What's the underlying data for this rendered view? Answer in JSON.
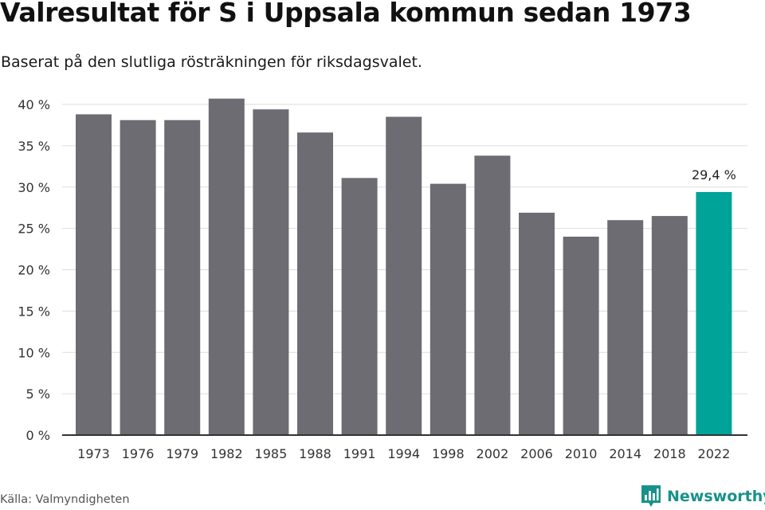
{
  "title": "Valresultat för S i Uppsala kommun sedan 1973",
  "subtitle": "Baserat på den slutliga rösträkningen för riksdagsvalet.",
  "source": "Källa: Valmyndigheten",
  "brand": "Newsworthy",
  "colors": {
    "bar": "#6d6c72",
    "highlight": "#00a398",
    "grid": "#dddddd",
    "axis": "#333333",
    "brand": "#17928a"
  },
  "chart_data": {
    "type": "bar",
    "categories": [
      "1973",
      "1976",
      "1979",
      "1982",
      "1985",
      "1988",
      "1991",
      "1994",
      "1998",
      "2002",
      "2006",
      "2010",
      "2014",
      "2018",
      "2022"
    ],
    "values": [
      38.8,
      38.1,
      38.1,
      40.7,
      39.4,
      36.6,
      31.1,
      38.5,
      30.4,
      33.8,
      26.9,
      24.0,
      26.0,
      26.5,
      29.4
    ],
    "highlight_index": 14,
    "annotations": [
      {
        "index": 14,
        "label": "29,4 %"
      }
    ],
    "yticks": [
      "0 %",
      "5 %",
      "10 %",
      "15 %",
      "20 %",
      "25 %",
      "30 %",
      "35 %",
      "40 %"
    ],
    "ylim": [
      0,
      40
    ],
    "grid": true
  }
}
